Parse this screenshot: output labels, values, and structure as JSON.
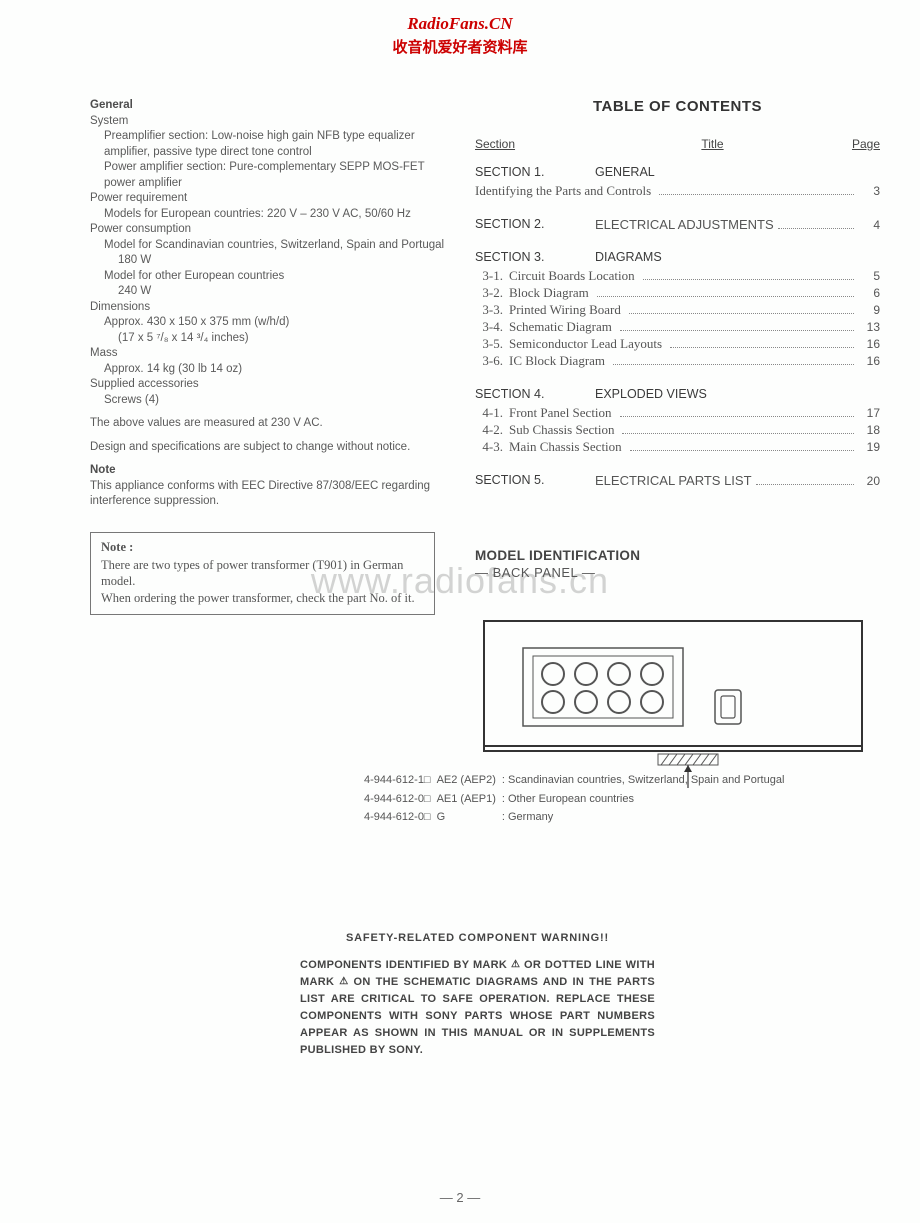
{
  "watermark": {
    "line1": "RadioFans.CN",
    "line2": "收音机爱好者资料库",
    "center": "www.radiofans.cn"
  },
  "general": {
    "heading": "General",
    "system_label": "System",
    "preamp": "Preamplifier section: Low-noise high gain NFB type equalizer amplifier, passive type direct tone  control",
    "poweramp": "Power amplifier section: Pure-complementary SEPP MOS-FET power amplifier",
    "power_req_label": "Power requirement",
    "power_req": "Models for European countries: 220 V – 230 V AC, 50/60 Hz",
    "power_cons_label": "Power consumption",
    "power_cons1": "Model for Scandinavian countries, Switzerland, Spain and Portugal",
    "power_cons1_val": "180 W",
    "power_cons2": "Model for other European countries",
    "power_cons2_val": "240 W",
    "dimensions_label": "Dimensions",
    "dimensions1": "Approx. 430 x 150 x 375 mm (w/h/d)",
    "dimensions2": "(17 x  5 ⁷/₈ x 14 ³/₄ inches)",
    "mass_label": "Mass",
    "mass": "Approx. 14 kg (30 lb 14 oz)",
    "supplied_label": "Supplied accessories",
    "supplied": "Screws (4)",
    "note_measured": "The above values are measured at 230 V AC.",
    "note_design": "Design and specifications are subject to change without notice.",
    "note_heading": "Note",
    "note_eec": "This appliance conforms with EEC Directive 87/308/EEC regarding interference suppression."
  },
  "notebox": {
    "title": "Note :",
    "line1": "There are two types of power transformer (T901) in German model.",
    "line2": "When ordering the power transformer, check the part No. of it."
  },
  "toc": {
    "title": "TABLE OF CONTENTS",
    "h_section": "Section",
    "h_title": "Title",
    "h_page": "Page",
    "s1_num": "SECTION 1.",
    "s1_title": "GENERAL",
    "s1_sub_label": "Identifying the Parts and Controls",
    "s1_sub_page": "3",
    "s2_num": "SECTION 2.",
    "s2_title": "ELECTRICAL ADJUSTMENTS",
    "s2_page": "4",
    "s3_num": "SECTION 3.",
    "s3_title": "DIAGRAMS",
    "s3_items": [
      {
        "n": "3-1.",
        "label": "Circuit Boards Location",
        "page": "5"
      },
      {
        "n": "3-2.",
        "label": "Block Diagram",
        "page": "6"
      },
      {
        "n": "3-3.",
        "label": "Printed Wiring Board",
        "page": "9"
      },
      {
        "n": "3-4.",
        "label": "Schematic Diagram",
        "page": "13"
      },
      {
        "n": "3-5.",
        "label": "Semiconductor Lead Layouts",
        "page": "16"
      },
      {
        "n": "3-6.",
        "label": "IC Block Diagram",
        "page": "16"
      }
    ],
    "s4_num": "SECTION 4.",
    "s4_title": "EXPLODED VIEWS",
    "s4_items": [
      {
        "n": "4-1.",
        "label": "Front Panel Section",
        "page": "17"
      },
      {
        "n": "4-2.",
        "label": "Sub Chassis Section",
        "page": "18"
      },
      {
        "n": "4-3.",
        "label": "Main Chassis Section",
        "page": "19"
      }
    ],
    "s5_num": "SECTION 5.",
    "s5_title": "ELECTRICAL PARTS LIST",
    "s5_page": "20"
  },
  "model_id": {
    "title": "MODEL IDENTIFICATION",
    "sub": "— BACK PANEL —",
    "rows": [
      {
        "pn": "4-944-612-1□",
        "code": "AE2 (AEP2)",
        "desc": ": Scandinavian countries, Switzerland, Spain and Portugal"
      },
      {
        "pn": "4-944-612-0□",
        "code": "AE1 (AEP1)",
        "desc": ": Other European countries"
      },
      {
        "pn": "4-944-612-0□",
        "code": "G",
        "desc": ": Germany"
      }
    ]
  },
  "safety": {
    "title": "SAFETY-RELATED COMPONENT WARNING!!",
    "body1": "COMPONENTS IDENTIFIED BY MARK ",
    "body2": " OR DOTTED LINE WITH MARK ",
    "body3": " ON THE SCHEMATIC DIAGRAMS AND IN THE PARTS LIST ARE CRITICAL TO SAFE OPERATION.   REPLACE THESE COMPONENTS WITH SONY PARTS WHOSE PART NUMBERS APPEAR AS SHOWN IN THIS MANUAL OR IN SUPPLEMENTS PUBLISHED BY SONY."
  },
  "page_number": "— 2 —"
}
